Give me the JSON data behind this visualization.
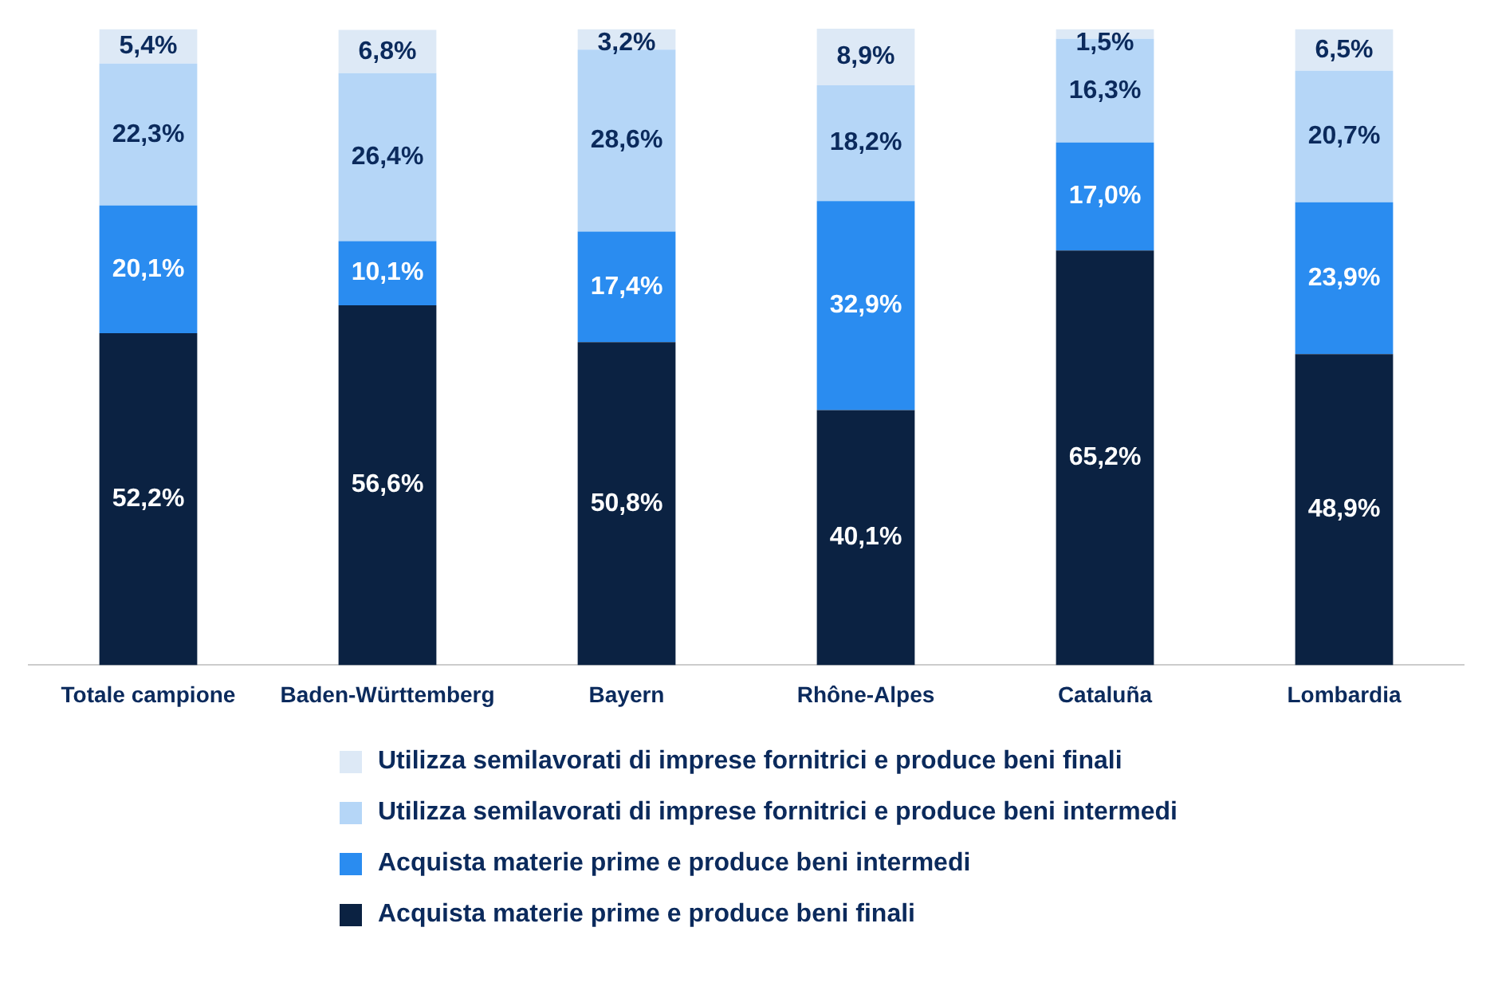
{
  "chart_data": {
    "type": "bar",
    "stacked": true,
    "categories": [
      "Totale campione",
      "Baden-Württemberg",
      "Bayern",
      "Rhône-Alpes",
      "Cataluña",
      "Lombardia"
    ],
    "series": [
      {
        "name": "Acquista materie prime e produce beni finali",
        "color": "#0b2242",
        "values": [
          52.2,
          56.6,
          50.8,
          40.1,
          65.2,
          48.9
        ],
        "value_labels": [
          "52,2%",
          "56,6%",
          "50,8%",
          "40,1%",
          "65,2%",
          "48,9%"
        ]
      },
      {
        "name": "Acquista materie prime e produce beni intermedi",
        "color": "#2a8cf0",
        "values": [
          20.1,
          10.1,
          17.4,
          32.9,
          17.0,
          23.9
        ],
        "value_labels": [
          "20,1%",
          "10,1%",
          "17,4%",
          "32,9%",
          "17,0%",
          "23,9%"
        ]
      },
      {
        "name": "Utilizza semilavorati di imprese fornitrici e produce beni intermedi",
        "color": "#b5d6f7",
        "values": [
          22.3,
          26.4,
          28.6,
          18.2,
          16.3,
          20.7
        ],
        "value_labels": [
          "22,3%",
          "26,4%",
          "28,6%",
          "18,2%",
          "16,3%",
          "20,7%"
        ]
      },
      {
        "name": "Utilizza semilavorati di imprese fornitrici e produce beni finali",
        "color": "#dde9f6",
        "values": [
          5.4,
          6.8,
          3.2,
          8.9,
          1.5,
          6.5
        ],
        "value_labels": [
          "5,4%",
          "6,8%",
          "3,2%",
          "8,9%",
          "1,5%",
          "6,5%"
        ]
      }
    ],
    "legend": "bottom",
    "grid": false,
    "tick_labels": "x"
  }
}
